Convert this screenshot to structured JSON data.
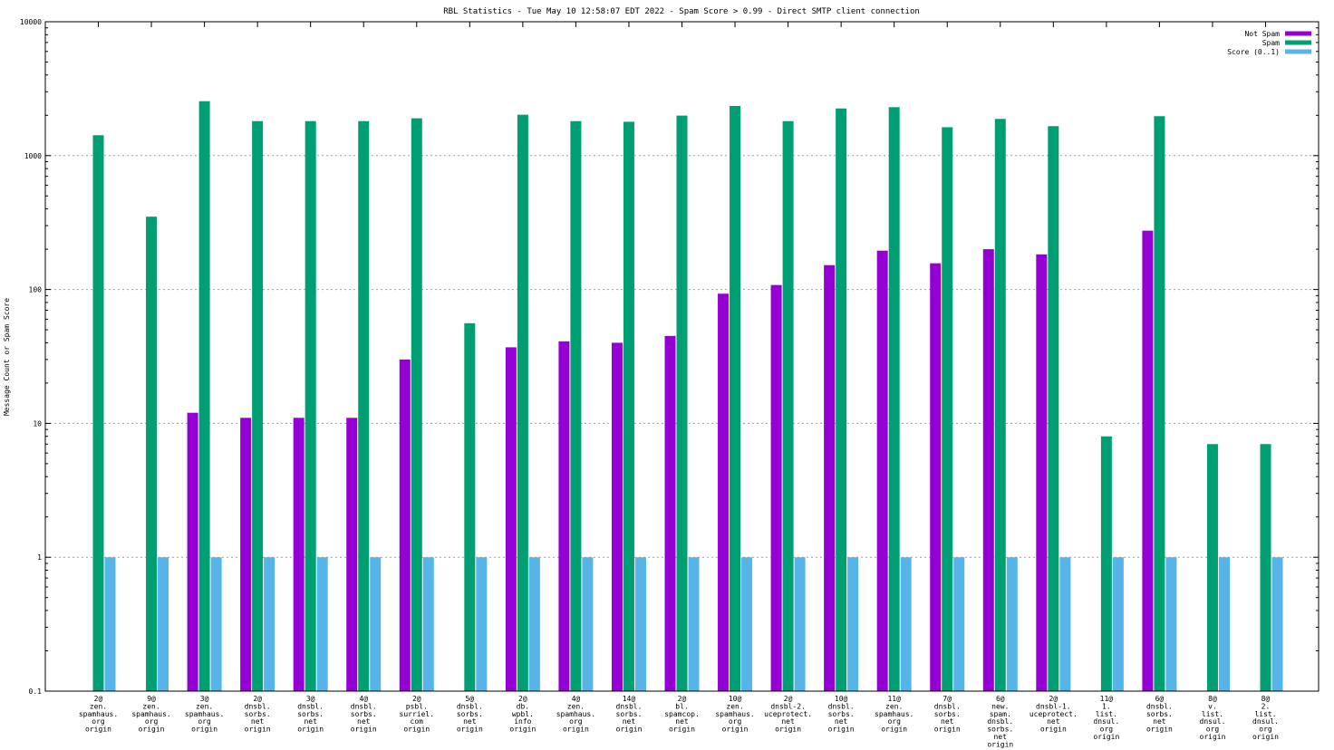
{
  "chart_data": {
    "type": "bar",
    "title": "RBL Statistics - Tue May 10 12:58:07 EDT 2022 - Spam Score > 0.99 - Direct SMTP client connection",
    "xlabel": "",
    "ylabel": "Message Count or Spam Score",
    "yscale": "log",
    "ylim": [
      0.1,
      10000
    ],
    "yticks": [
      "0.1",
      "1",
      "10",
      "100",
      "1000",
      "10000"
    ],
    "grid": true,
    "legend_position": "top-right",
    "categories": [
      [
        "2@",
        "zen.",
        "spamhaus.",
        "org",
        "origin"
      ],
      [
        "9@",
        "zen.",
        "spamhaus.",
        "org",
        "origin"
      ],
      [
        "3@",
        "zen.",
        "spamhaus.",
        "org",
        "origin"
      ],
      [
        "2@",
        "dnsbl.",
        "sorbs.",
        "net",
        "origin"
      ],
      [
        "3@",
        "dnsbl.",
        "sorbs.",
        "net",
        "origin"
      ],
      [
        "4@",
        "dnsbl.",
        "sorbs.",
        "net",
        "origin"
      ],
      [
        "2@",
        "psbl.",
        "surriel.",
        "com",
        "origin"
      ],
      [
        "5@",
        "dnsbl.",
        "sorbs.",
        "net",
        "origin"
      ],
      [
        "2@",
        "db.",
        "wpbl.",
        "info",
        "origin"
      ],
      [
        "4@",
        "zen.",
        "spamhaus.",
        "org",
        "origin"
      ],
      [
        "14@",
        "dnsbl.",
        "sorbs.",
        "net",
        "origin"
      ],
      [
        "2@",
        "bl.",
        "spamcop.",
        "net",
        "origin"
      ],
      [
        "10@",
        "zen.",
        "spamhaus.",
        "org",
        "origin"
      ],
      [
        "2@",
        "dnsbl-2.",
        "uceprotect.",
        "net",
        "origin"
      ],
      [
        "10@",
        "dnsbl.",
        "sorbs.",
        "net",
        "origin"
      ],
      [
        "11@",
        "zen.",
        "spamhaus.",
        "org",
        "origin"
      ],
      [
        "7@",
        "dnsbl.",
        "sorbs.",
        "net",
        "origin"
      ],
      [
        "6@",
        "new.",
        "spam.",
        "dnsbl.",
        "sorbs.",
        "net",
        "origin"
      ],
      [
        "2@",
        "dnsbl-1.",
        "uceprotect.",
        "net",
        "origin"
      ],
      [
        "11@",
        "1.",
        "list.",
        "dnsul.",
        "org",
        "origin"
      ],
      [
        "6@",
        "dnsbl.",
        "sorbs.",
        "net",
        "origin"
      ],
      [
        "8@",
        "v.",
        "list.",
        "dnsul.",
        "org",
        "origin"
      ],
      [
        "8@",
        "2.",
        "list.",
        "dnsul.",
        "org",
        "origin"
      ]
    ],
    "series": [
      {
        "name": "Not Spam",
        "color": "#9400d3",
        "values": [
          0,
          0,
          12,
          11,
          11,
          11,
          30,
          0,
          37,
          41,
          40,
          45,
          93,
          108,
          152,
          195,
          157,
          200,
          183,
          0,
          275,
          0,
          0
        ]
      },
      {
        "name": "Spam",
        "color": "#009e73",
        "values": [
          1420,
          350,
          2550,
          1810,
          1810,
          1810,
          1900,
          56,
          2020,
          1810,
          1790,
          1990,
          2350,
          1810,
          2250,
          2300,
          1630,
          1880,
          1660,
          8,
          1970,
          7,
          7
        ]
      },
      {
        "name": "Score (0..1)",
        "color": "#56b4e9",
        "values": [
          1,
          1,
          1,
          1,
          1,
          1,
          1,
          1,
          1,
          1,
          1,
          1,
          1,
          1,
          1,
          1,
          1,
          1,
          1,
          1,
          1,
          1,
          1
        ]
      }
    ]
  }
}
